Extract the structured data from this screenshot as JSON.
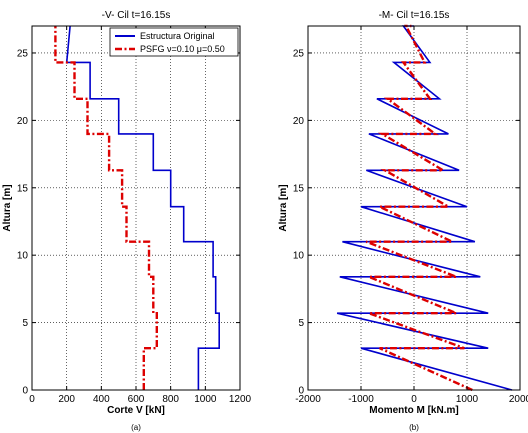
{
  "chart_data": [
    {
      "type": "line",
      "title": "-V- Cil t=16.15s",
      "xlabel": "Corte V [kN]",
      "ylabel": "Altura [m]",
      "caption": "(a)",
      "xlim": [
        0,
        1200
      ],
      "ylim": [
        0,
        27
      ],
      "xticks": [
        0,
        200,
        400,
        600,
        800,
        1000,
        1200
      ],
      "yticks": [
        0,
        5,
        10,
        15,
        20,
        25
      ],
      "grid": true,
      "legend_position": "top-right",
      "series": [
        {
          "name": "Estructura Original",
          "color": "#0000cc",
          "style": "solid",
          "x": [
            960,
            960,
            1080,
            1080,
            1060,
            1060,
            1045,
            1045,
            1040,
            1040,
            1025,
            1025,
            1020,
            1020,
            875,
            875,
            860,
            860,
            800,
            800,
            790,
            790,
            700,
            700,
            690,
            690,
            500,
            500,
            495,
            495,
            335,
            335,
            320,
            320,
            215,
            215,
            200,
            200,
            220
          ],
          "y": [
            0,
            3.1,
            3.1,
            5.7,
            5.7,
            8.4,
            8.4,
            11.0,
            11.0,
            11.0,
            11.0,
            11.0,
            11.0,
            11.0,
            11.0,
            13.6,
            13.6,
            13.6,
            13.6,
            16.3,
            16.3,
            16.3,
            16.3,
            19.0,
            19.0,
            19.0,
            19.0,
            21.6,
            21.6,
            21.6,
            21.6,
            24.3,
            24.3,
            24.3,
            24.3,
            24.3,
            24.3,
            24.3,
            27.0
          ]
        },
        {
          "name": "PSFG ν=0.10 μ=0.50",
          "color": "#dd0000",
          "style": "dashdot",
          "x": [
            645,
            645,
            720,
            720,
            710,
            710,
            700,
            700,
            685,
            685,
            675,
            675,
            660,
            660,
            545,
            545,
            530,
            530,
            520,
            520,
            505,
            505,
            445,
            445,
            425,
            425,
            320,
            320,
            300,
            300,
            245,
            245,
            225,
            225,
            165,
            165,
            135,
            135
          ],
          "y": [
            0,
            3.1,
            3.1,
            5.7,
            5.7,
            5.7,
            5.7,
            8.4,
            8.4,
            8.4,
            8.4,
            11.0,
            11.0,
            11.0,
            11.0,
            13.6,
            13.6,
            13.6,
            13.6,
            16.3,
            16.3,
            16.3,
            16.3,
            19.0,
            19.0,
            19.0,
            19.0,
            21.6,
            21.6,
            21.6,
            21.6,
            24.3,
            24.3,
            24.3,
            24.3,
            24.3,
            24.3,
            27.0
          ]
        }
      ]
    },
    {
      "type": "line",
      "title": "-M- Cil t=16.15s",
      "xlabel": "Momento M [kN.m]",
      "ylabel": "Altura [m]",
      "caption": "(b)",
      "xlim": [
        -2000,
        2000
      ],
      "ylim": [
        0,
        27
      ],
      "xticks": [
        -2000,
        -1000,
        0,
        1000,
        2000
      ],
      "yticks": [
        0,
        5,
        10,
        15,
        20,
        25
      ],
      "grid": true,
      "series": [
        {
          "name": "Estructura Original",
          "color": "#0000cc",
          "style": "solid",
          "x": [
            1850,
            -1000,
            1400,
            -1450,
            1400,
            -1400,
            1250,
            -1350,
            1150,
            -1000,
            1000,
            -900,
            850,
            -850,
            650,
            -700,
            480,
            -380,
            300,
            -200,
            0
          ],
          "y": [
            0,
            3.1,
            3.1,
            5.7,
            5.7,
            8.4,
            8.4,
            11.0,
            11.0,
            13.6,
            13.6,
            16.3,
            16.3,
            19.0,
            19.0,
            21.6,
            21.6,
            24.3,
            24.3,
            27.0,
            27.0
          ]
        },
        {
          "name": "PSFG ν=0.10 μ=0.50",
          "color": "#dd0000",
          "style": "dashdot",
          "x": [
            1100,
            -650,
            950,
            -850,
            800,
            -850,
            800,
            -900,
            720,
            -650,
            650,
            -550,
            550,
            -600,
            400,
            -500,
            300,
            -200,
            200,
            -150,
            -50
          ],
          "y": [
            0,
            3.1,
            3.1,
            5.7,
            5.7,
            8.4,
            8.4,
            11.0,
            11.0,
            13.6,
            13.6,
            16.3,
            16.3,
            19.0,
            19.0,
            21.6,
            21.6,
            24.3,
            24.3,
            27.0,
            27.0
          ]
        }
      ]
    }
  ]
}
